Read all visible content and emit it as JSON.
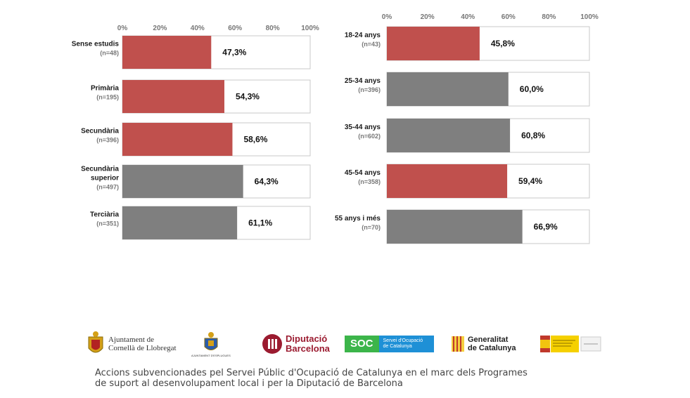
{
  "chart_data": [
    {
      "type": "bar",
      "orientation": "horizontal",
      "xlim": [
        0,
        100
      ],
      "ticks": [
        "0%",
        "20%",
        "40%",
        "60%",
        "80%",
        "100%"
      ],
      "categories": [
        {
          "label": [
            "Sense estudis"
          ],
          "n": "(n=48)",
          "value": 47.3,
          "value_label": "47,3%",
          "color": "#c0504d"
        },
        {
          "label": [
            "Primària"
          ],
          "n": "(n=195)",
          "value": 54.3,
          "value_label": "54,3%",
          "color": "#c0504d"
        },
        {
          "label": [
            "Secundària"
          ],
          "n": "(n=396)",
          "value": 58.6,
          "value_label": "58,6%",
          "color": "#c0504d"
        },
        {
          "label": [
            "Secundària",
            "superior"
          ],
          "n": "(n=497)",
          "value": 64.3,
          "value_label": "64,3%",
          "color": "#7f7f7f"
        },
        {
          "label": [
            "Terciària"
          ],
          "n": "(n=351)",
          "value": 61.1,
          "value_label": "61,1%",
          "color": "#7f7f7f"
        }
      ]
    },
    {
      "type": "bar",
      "orientation": "horizontal",
      "xlim": [
        0,
        100
      ],
      "ticks": [
        "0%",
        "20%",
        "40%",
        "60%",
        "80%",
        "100%"
      ],
      "categories": [
        {
          "label": [
            "18-24 anys"
          ],
          "n": "(n=43)",
          "value": 45.8,
          "value_label": "45,8%",
          "color": "#c0504d"
        },
        {
          "label": [
            "25-34 anys"
          ],
          "n": "(n=396)",
          "value": 60.0,
          "value_label": "60,0%",
          "color": "#7f7f7f"
        },
        {
          "label": [
            "35-44 anys"
          ],
          "n": "(n=602)",
          "value": 60.8,
          "value_label": "60,8%",
          "color": "#7f7f7f"
        },
        {
          "label": [
            "45-54 anys"
          ],
          "n": "(n=358)",
          "value": 59.4,
          "value_label": "59,4%",
          "color": "#c0504d"
        },
        {
          "label": [
            "55 anys i més"
          ],
          "n": "(n=70)",
          "value": 66.9,
          "value_label": "66,9%",
          "color": "#7f7f7f"
        }
      ]
    }
  ],
  "logos": {
    "cornella": [
      "Ajuntament de",
      "Cornellà de Llobregat"
    ],
    "esplugues": "AJUNTAMENT D'ESPLUGUES",
    "diputacio": [
      "Diputació",
      "Barcelona"
    ],
    "soc": {
      "abbr": "SOC",
      "text": [
        "Servei d'Ocupació",
        "de Catalunya"
      ]
    },
    "generalitat": [
      "Generalitat",
      "de Catalunya"
    ]
  },
  "footer": {
    "line1": "Accions subvencionades pel Servei Públic d'Ocupació de Catalunya en el marc dels Programes",
    "line2": "de suport al desenvolupament local i per la Diputació de Barcelona"
  }
}
